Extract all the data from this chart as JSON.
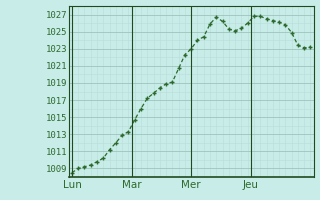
{
  "y_pts": [
    1008.5,
    1009.0,
    1009.2,
    1009.4,
    1009.8,
    1010.2,
    1011.2,
    1012.0,
    1012.9,
    1013.3,
    1014.7,
    1016.0,
    1017.2,
    1017.8,
    1018.4,
    1018.9,
    1019.1,
    1020.7,
    1022.3,
    1023.0,
    1024.0,
    1024.4,
    1025.9,
    1026.7,
    1026.2,
    1025.3,
    1025.1,
    1025.4,
    1026.0,
    1026.8,
    1026.8,
    1026.5,
    1026.3,
    1026.1,
    1025.8,
    1024.9,
    1023.4,
    1023.1,
    1023.2
  ],
  "day_labels": [
    "Lun",
    "Mar",
    "Mer",
    "Jeu"
  ],
  "ytick_labels": [
    "1009",
    "1011",
    "1013",
    "1015",
    "1017",
    "1019",
    "1021",
    "1023",
    "1025",
    "1027"
  ],
  "ytick_vals": [
    1009,
    1011,
    1013,
    1015,
    1017,
    1019,
    1021,
    1023,
    1025,
    1027
  ],
  "ylim": [
    1008,
    1028
  ],
  "line_color": "#2d6a2d",
  "bg_color": "#c8ece8",
  "grid_color_major": "#9cc4bc",
  "grid_color_minor": "#b8dcd8",
  "axis_color": "#1e4a1e",
  "tick_label_color": "#2d6a2d",
  "label_fontsize": 6.5,
  "xlabel_fontsize": 7.5
}
